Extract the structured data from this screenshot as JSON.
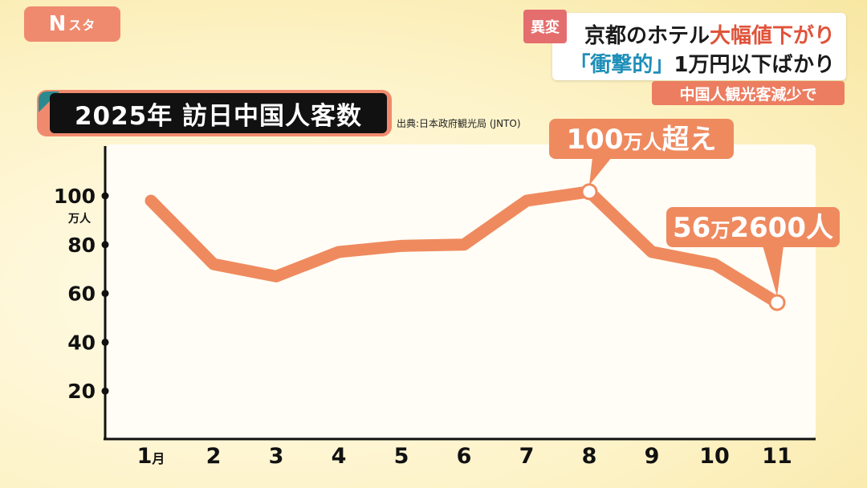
{
  "logo": {
    "main": "N",
    "sub": "スタ"
  },
  "headline": {
    "badge": "異変",
    "line1_a": "京都のホテル",
    "line1_b": "大幅値下がり",
    "line2_a": "「衝撃的」",
    "line2_b": "1万円以下ばかり"
  },
  "subheadline": "中国人観光客減少で",
  "chart_title": "2025年 訪日中国人客数",
  "source": "出典:日本政府観光局 (JNTO)",
  "colors": {
    "line": "#ef8a5f",
    "accent": "#ef8a5f",
    "plot_bg": "#fffdf5"
  },
  "chart_data": {
    "type": "line",
    "title": "2025年 訪日中国人客数",
    "ylabel_unit": "万人",
    "x": [
      1,
      2,
      3,
      4,
      5,
      6,
      7,
      8,
      9,
      10,
      11
    ],
    "categories": [
      "1",
      "2",
      "3",
      "4",
      "5",
      "6",
      "7",
      "8",
      "9",
      "10",
      "11"
    ],
    "first_category_suffix": "月",
    "values": [
      98,
      72,
      67,
      77,
      79.5,
      80,
      98,
      101.7,
      77,
      72,
      56.26
    ],
    "yticks": [
      20,
      40,
      60,
      80,
      100
    ],
    "ylim": [
      0,
      120
    ],
    "grid": false,
    "annotations": [
      {
        "index": 7,
        "text_a": "100",
        "text_b": "万人",
        "text_c": "超え"
      },
      {
        "index": 10,
        "text_a": "56",
        "text_b": "万",
        "text_c": "2600人"
      }
    ]
  }
}
